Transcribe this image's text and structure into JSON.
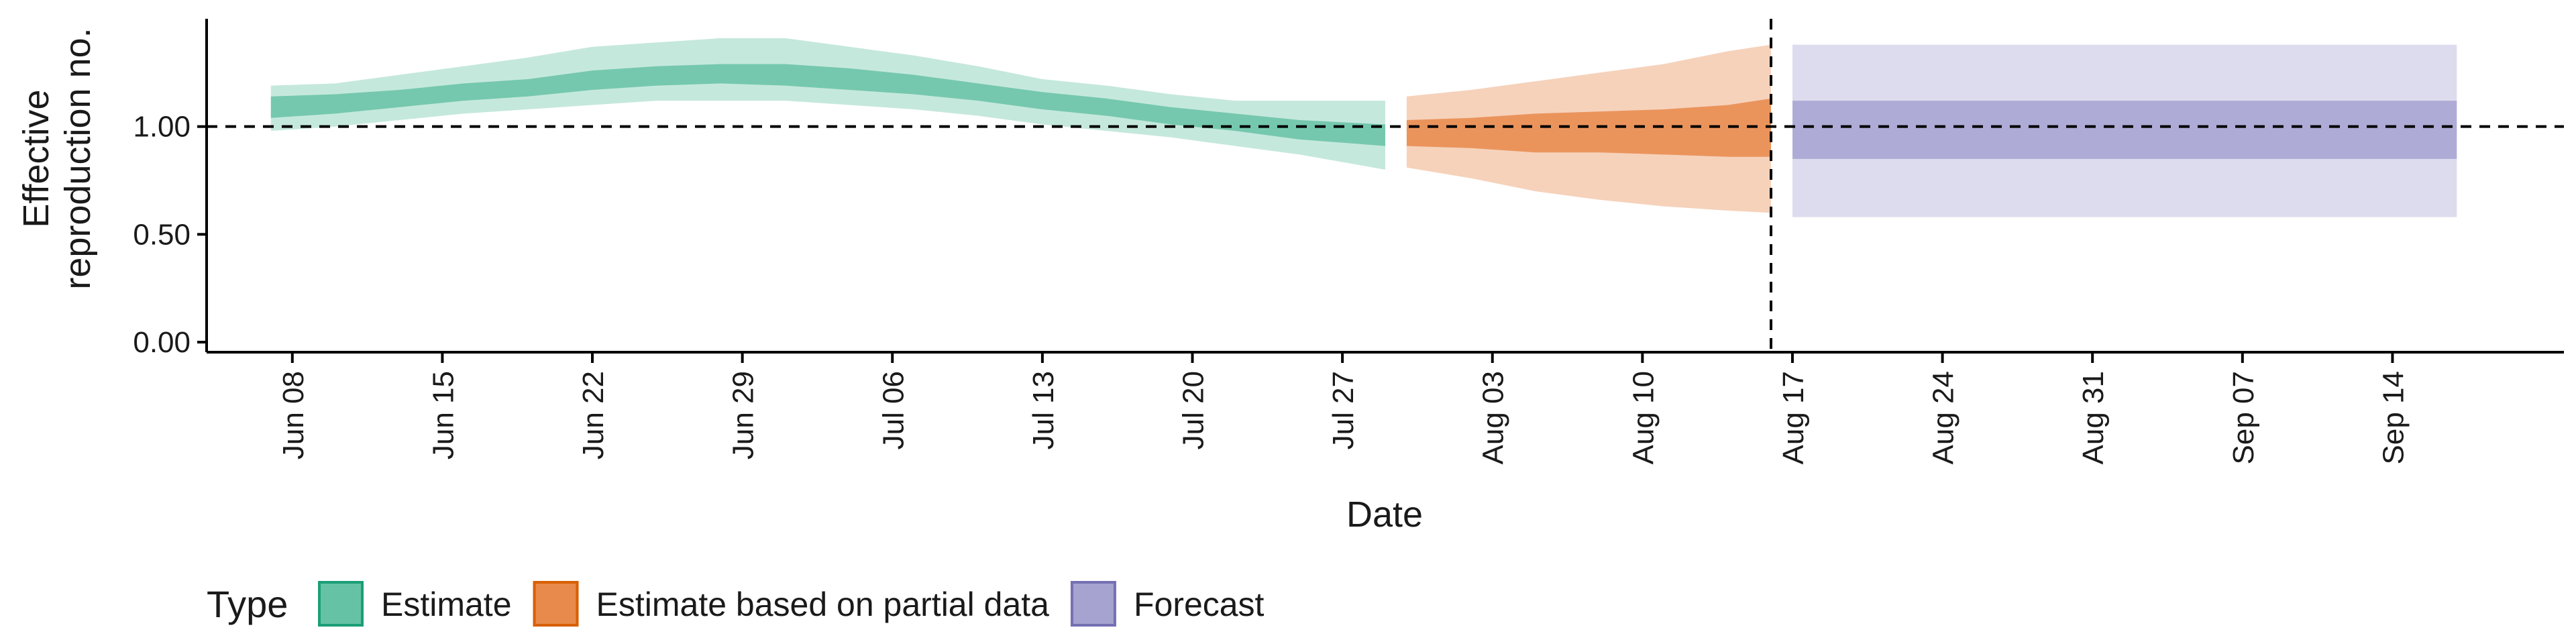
{
  "chart_data": {
    "type": "area",
    "xlabel": "Date",
    "ylabel_lines": [
      "Effective",
      "reproduction no."
    ],
    "ylim": [
      0,
      1.5
    ],
    "y_ticks": [
      0.0,
      0.5,
      1.0
    ],
    "y_tick_labels": [
      "0.00",
      "0.50",
      "1.00"
    ],
    "x_start": "2020-06-04",
    "x_end": "2020-09-22",
    "x_ticks": [
      "2020-06-08",
      "2020-06-15",
      "2020-06-22",
      "2020-06-29",
      "2020-07-06",
      "2020-07-13",
      "2020-07-20",
      "2020-07-27",
      "2020-08-03",
      "2020-08-10",
      "2020-08-17",
      "2020-08-24",
      "2020-08-31",
      "2020-09-07",
      "2020-09-14"
    ],
    "x_tick_labels": [
      "Jun 08",
      "Jun 15",
      "Jun 22",
      "Jun 29",
      "Jul 06",
      "Jul 13",
      "Jul 20",
      "Jul 27",
      "Aug 03",
      "Aug 10",
      "Aug 17",
      "Aug 24",
      "Aug 31",
      "Sep 07",
      "Sep 14"
    ],
    "reference_line_y": 1.0,
    "vertical_line_date": "2020-08-16",
    "legend": {
      "title": "Type",
      "placement": "bottom-left",
      "items": [
        "Estimate",
        "Estimate based on partial data",
        "Forecast"
      ]
    },
    "series": [
      {
        "name": "Estimate",
        "fill_color": "#66c2a5",
        "stroke_color": "#1b9e77",
        "points": [
          {
            "date": "2020-06-07",
            "lower90": 0.98,
            "lower50": 1.04,
            "upper50": 1.14,
            "upper90": 1.19
          },
          {
            "date": "2020-06-10",
            "lower90": 1.0,
            "lower50": 1.06,
            "upper50": 1.15,
            "upper90": 1.2
          },
          {
            "date": "2020-06-13",
            "lower90": 1.03,
            "lower50": 1.09,
            "upper50": 1.17,
            "upper90": 1.24
          },
          {
            "date": "2020-06-16",
            "lower90": 1.06,
            "lower50": 1.12,
            "upper50": 1.2,
            "upper90": 1.28
          },
          {
            "date": "2020-06-19",
            "lower90": 1.08,
            "lower50": 1.14,
            "upper50": 1.22,
            "upper90": 1.32
          },
          {
            "date": "2020-06-22",
            "lower90": 1.1,
            "lower50": 1.17,
            "upper50": 1.26,
            "upper90": 1.37
          },
          {
            "date": "2020-06-25",
            "lower90": 1.12,
            "lower50": 1.19,
            "upper50": 1.28,
            "upper90": 1.39
          },
          {
            "date": "2020-06-28",
            "lower90": 1.12,
            "lower50": 1.2,
            "upper50": 1.29,
            "upper90": 1.41
          },
          {
            "date": "2020-07-01",
            "lower90": 1.12,
            "lower50": 1.19,
            "upper50": 1.29,
            "upper90": 1.41
          },
          {
            "date": "2020-07-04",
            "lower90": 1.1,
            "lower50": 1.17,
            "upper50": 1.27,
            "upper90": 1.37
          },
          {
            "date": "2020-07-07",
            "lower90": 1.08,
            "lower50": 1.15,
            "upper50": 1.24,
            "upper90": 1.33
          },
          {
            "date": "2020-07-10",
            "lower90": 1.05,
            "lower50": 1.12,
            "upper50": 1.2,
            "upper90": 1.28
          },
          {
            "date": "2020-07-13",
            "lower90": 1.01,
            "lower50": 1.08,
            "upper50": 1.16,
            "upper90": 1.22
          },
          {
            "date": "2020-07-16",
            "lower90": 0.98,
            "lower50": 1.05,
            "upper50": 1.13,
            "upper90": 1.19
          },
          {
            "date": "2020-07-19",
            "lower90": 0.95,
            "lower50": 1.01,
            "upper50": 1.09,
            "upper90": 1.15
          },
          {
            "date": "2020-07-22",
            "lower90": 0.91,
            "lower50": 0.98,
            "upper50": 1.06,
            "upper90": 1.12
          },
          {
            "date": "2020-07-25",
            "lower90": 0.87,
            "lower50": 0.94,
            "upper50": 1.03,
            "upper90": 1.12
          },
          {
            "date": "2020-07-29",
            "lower90": 0.8,
            "lower50": 0.91,
            "upper50": 1.01,
            "upper90": 1.12
          }
        ]
      },
      {
        "name": "Estimate based on partial data",
        "fill_color": "#e78a4b",
        "stroke_color": "#d95f02",
        "points": [
          {
            "date": "2020-07-30",
            "lower90": 0.81,
            "lower50": 0.91,
            "upper50": 1.03,
            "upper90": 1.14
          },
          {
            "date": "2020-08-02",
            "lower90": 0.76,
            "lower50": 0.9,
            "upper50": 1.04,
            "upper90": 1.17
          },
          {
            "date": "2020-08-05",
            "lower90": 0.7,
            "lower50": 0.88,
            "upper50": 1.06,
            "upper90": 1.21
          },
          {
            "date": "2020-08-08",
            "lower90": 0.66,
            "lower50": 0.88,
            "upper50": 1.07,
            "upper90": 1.25
          },
          {
            "date": "2020-08-11",
            "lower90": 0.63,
            "lower50": 0.87,
            "upper50": 1.08,
            "upper90": 1.29
          },
          {
            "date": "2020-08-14",
            "lower90": 0.61,
            "lower50": 0.86,
            "upper50": 1.1,
            "upper90": 1.35
          },
          {
            "date": "2020-08-16",
            "lower90": 0.6,
            "lower50": 0.86,
            "upper50": 1.13,
            "upper90": 1.38
          }
        ]
      },
      {
        "name": "Forecast",
        "fill_color": "#a6a3d1",
        "stroke_color": "#7570b3",
        "points": [
          {
            "date": "2020-08-17",
            "lower90": 0.58,
            "lower50": 0.85,
            "upper50": 1.12,
            "upper90": 1.38
          },
          {
            "date": "2020-09-17",
            "lower90": 0.58,
            "lower50": 0.85,
            "upper50": 1.12,
            "upper90": 1.38
          }
        ]
      }
    ]
  }
}
